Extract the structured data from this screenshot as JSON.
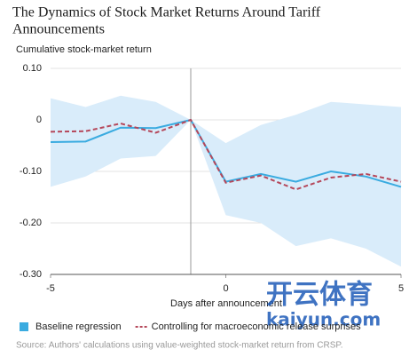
{
  "chart_data": {
    "type": "line",
    "title_lines": [
      "The Dynamics of Stock Market Returns Around Tariff",
      "Announcements"
    ],
    "y_label": "Cumulative stock-market return",
    "x_label": "Days after announcement",
    "source": "Source: Authors' calculations using value-weighted stock-market return from CRSP.",
    "watermark": [
      "开云体育",
      "kaiyun.com"
    ],
    "x": [
      -5,
      -4,
      -3,
      -2,
      -1,
      0,
      1,
      2,
      3,
      4,
      5
    ],
    "xlim": [
      -5,
      5
    ],
    "xticks": [
      -5,
      0,
      5
    ],
    "ylim": [
      -0.3,
      0.1
    ],
    "yticks": [
      {
        "value": 0.1,
        "label": "0.10"
      },
      0,
      {
        "value": -0.1,
        "label": "-0.10"
      },
      {
        "value": -0.2,
        "label": "-0.20"
      },
      {
        "value": -0.3,
        "label": "-0.30"
      }
    ],
    "grid": true,
    "vline": -1,
    "band": {
      "color": "#d9ecfa",
      "upper": [
        0.042,
        0.025,
        0.047,
        0.035,
        0,
        -0.045,
        -0.01,
        0.01,
        0.035,
        0.03,
        0.025
      ],
      "lower": [
        -0.13,
        -0.11,
        -0.075,
        -0.07,
        0,
        -0.185,
        -0.2,
        -0.245,
        -0.23,
        -0.25,
        -0.285
      ]
    },
    "series": [
      {
        "name": "Baseline regression",
        "color": "#3aabe0",
        "dash": false,
        "values": [
          -0.043,
          -0.042,
          -0.015,
          -0.016,
          0,
          -0.12,
          -0.105,
          -0.12,
          -0.1,
          -0.11,
          -0.13
        ]
      },
      {
        "name": "Controlling for macroeconomic release surprises",
        "color": "#b5475a",
        "dash": true,
        "values": [
          -0.023,
          -0.022,
          -0.007,
          -0.025,
          0,
          -0.122,
          -0.108,
          -0.135,
          -0.112,
          -0.105,
          -0.12
        ]
      }
    ]
  }
}
